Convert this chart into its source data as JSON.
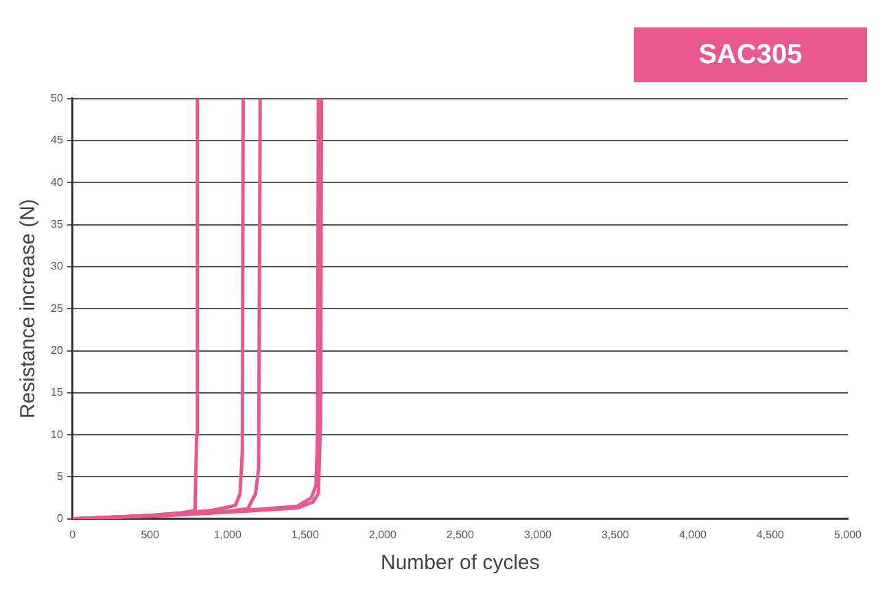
{
  "chart_data": {
    "type": "line",
    "title": "SAC305",
    "xlabel": "Number of cycles",
    "ylabel": "Resistance increase (N)",
    "xlim": [
      0,
      5000
    ],
    "xticks": [
      0,
      500,
      {
        "value": 1000,
        "label": "1,000"
      },
      {
        "value": 1500,
        "label": "1,500"
      },
      {
        "value": 2000,
        "label": "2,000"
      },
      {
        "value": 2500,
        "label": "2,500"
      },
      {
        "value": 3000,
        "label": "3,000"
      },
      {
        "value": 3500,
        "label": "3,500"
      },
      {
        "value": 4000,
        "label": "4,000"
      },
      {
        "value": 4500,
        "label": "4,500"
      },
      {
        "value": 5000,
        "label": "5,000"
      }
    ],
    "ylim": [
      0,
      50
    ],
    "yticks": [
      0,
      5,
      10,
      15,
      20,
      25,
      30,
      35,
      40,
      45,
      50
    ],
    "grid": "y",
    "legend": false,
    "marker": "none",
    "line_style": "solid",
    "series": [
      {
        "color": "#e8588f",
        "x": [
          0,
          400,
          700,
          790,
          800,
          805
        ],
        "values": [
          0,
          0.3,
          0.7,
          1,
          10,
          50
        ]
      },
      {
        "color": "#e8588f",
        "x": [
          0,
          500,
          900,
          1050,
          1080,
          1095,
          1100
        ],
        "values": [
          0,
          0.4,
          1,
          1.6,
          3,
          8,
          50
        ]
      },
      {
        "color": "#e8588f",
        "x": [
          0,
          500,
          1000,
          1130,
          1180,
          1200,
          1210
        ],
        "values": [
          0,
          0.4,
          0.9,
          1.2,
          3,
          6,
          50
        ]
      },
      {
        "color": "#e8588f",
        "x": [
          0,
          600,
          1100,
          1450,
          1540,
          1570,
          1580,
          1585
        ],
        "values": [
          0,
          0.5,
          1,
          1.5,
          2.5,
          4,
          10,
          50
        ]
      },
      {
        "color": "#e8588f",
        "x": [
          0,
          600,
          1100,
          1450,
          1550,
          1585,
          1600,
          1605
        ],
        "values": [
          0,
          0.4,
          0.9,
          1.3,
          2,
          3,
          12,
          50
        ]
      }
    ]
  }
}
